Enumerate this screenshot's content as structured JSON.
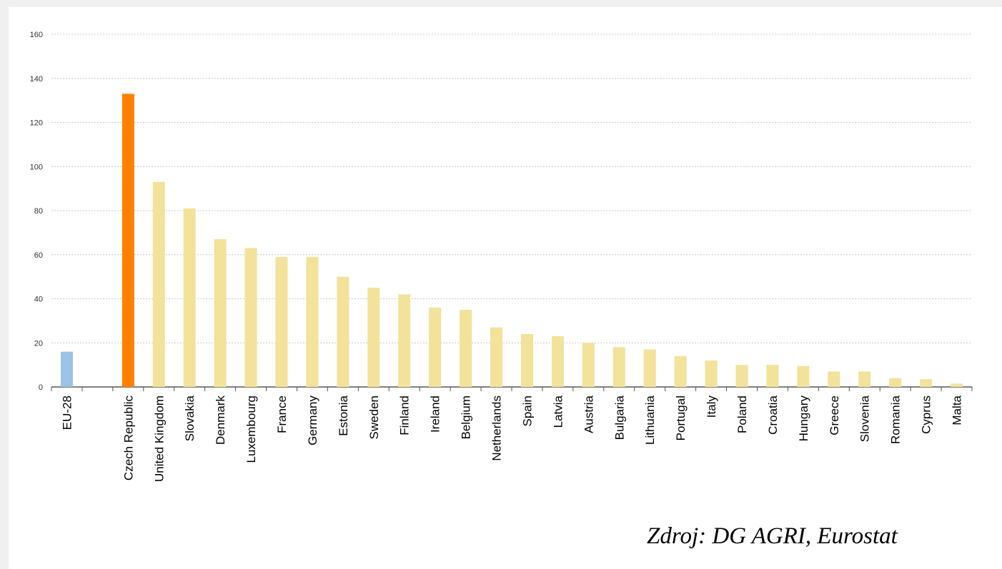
{
  "chart_data": {
    "type": "bar",
    "categories": [
      "EU-28",
      "",
      "Czech Republic",
      "United Kingdom",
      "Slovakia",
      "Denmark",
      "Luxembourg",
      "France",
      "Germany",
      "Estonia",
      "Sweden",
      "Finland",
      "Ireland",
      "Belgium",
      "Netherlands",
      "Spain",
      "Latvia",
      "Austria",
      "Bulgaria",
      "Lithuania",
      "Portugal",
      "Italy",
      "Poland",
      "Croatia",
      "Hungary",
      "Greece",
      "Slovenia",
      "Romania",
      "Cyprus",
      "Malta"
    ],
    "values": [
      16,
      null,
      133,
      93,
      81,
      67,
      63,
      59,
      59,
      50,
      45,
      42,
      36,
      35,
      27,
      24,
      23,
      20,
      18,
      17,
      14,
      12,
      10,
      10,
      9.5,
      7,
      7,
      4,
      3.5,
      1.5
    ],
    "ylim": [
      0,
      160
    ],
    "yticks": [
      "0",
      "20",
      "40",
      "60",
      "80",
      "100",
      "120",
      "140",
      "160"
    ],
    "grid": true,
    "colors": {
      "eu": "#9dc3e6",
      "highlight": "#ff7f00",
      "default": "#f2e29a",
      "grid": "#c8c8c8",
      "axis": "#555555"
    }
  },
  "source_note": "Zdroj: DG AGRI, Eurostat"
}
